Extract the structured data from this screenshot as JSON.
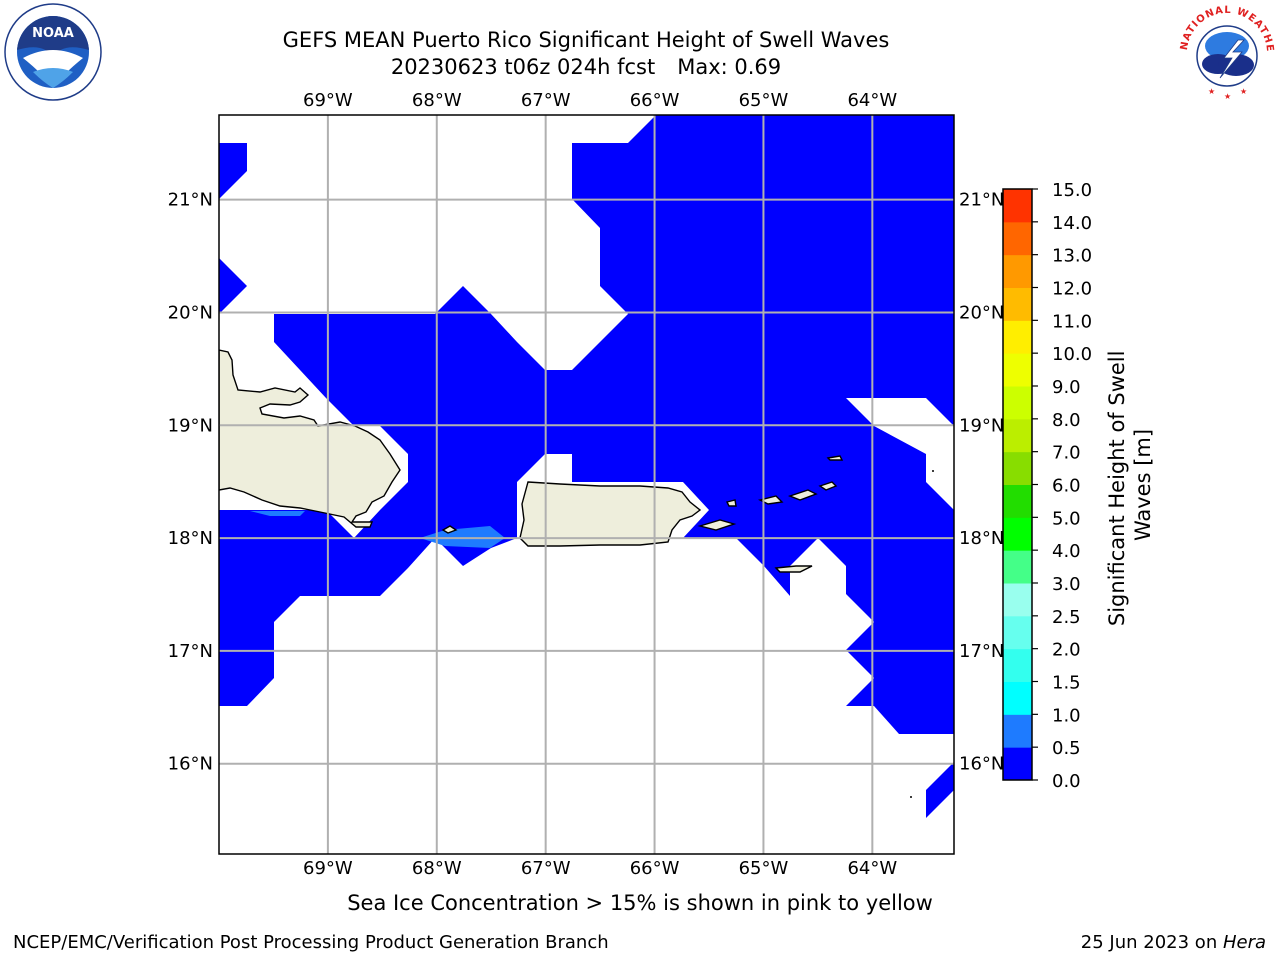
{
  "title": {
    "line1": "GEFS MEAN Puerto Rico Significant Height of Swell Waves",
    "line2_left": "20230623 t06z 024h fcst",
    "line2_right": "Max: 0.69"
  },
  "logos": {
    "left": {
      "name": "noaa-logo",
      "text": "NOAA"
    },
    "right": {
      "name": "nws-logo",
      "text": "NATIONAL WEATHER SERVICE"
    }
  },
  "map": {
    "lon_ticks": [
      "69°W",
      "68°W",
      "67°W",
      "66°W",
      "65°W",
      "64°W"
    ],
    "lat_ticks": [
      "21°N",
      "20°N",
      "19°N",
      "18°N",
      "17°N",
      "16°N"
    ],
    "lon_range": [
      -70.0,
      -63.25
    ],
    "lat_range": [
      15.2,
      21.75
    ],
    "gridlines": true,
    "land_color": "#eeeedc",
    "swell_color": "#0000ff",
    "swell_light_color": "#1e7bff"
  },
  "colorbar": {
    "label": "Significant Height of Swell Waves [m]",
    "label_line1": "Significant Height of Swell",
    "label_line2": "Waves [m]",
    "levels": [
      "0.0",
      "0.5",
      "1.0",
      "1.5",
      "2.0",
      "2.5",
      "3.0",
      "4.0",
      "5.0",
      "6.0",
      "7.0",
      "8.0",
      "9.0",
      "10.0",
      "11.0",
      "12.0",
      "13.0",
      "14.0",
      "15.0"
    ],
    "colors": [
      "#0000ff",
      "#1e7bff",
      "#00ffff",
      "#33ffee",
      "#66ffee",
      "#99ffee",
      "#44ff88",
      "#00ff00",
      "#22dd00",
      "#88dd00",
      "#bbee00",
      "#ccff00",
      "#eeff00",
      "#ffee00",
      "#ffbb00",
      "#ff9900",
      "#ff6600",
      "#ff3300"
    ]
  },
  "footer": {
    "ice_note": "Sea Ice Concentration > 15% is shown in pink to yellow",
    "credit": "NCEP/EMC/Verification Post Processing Product Generation Branch",
    "date_prefix": "25 Jun 2023 on ",
    "machine": "Hera"
  }
}
